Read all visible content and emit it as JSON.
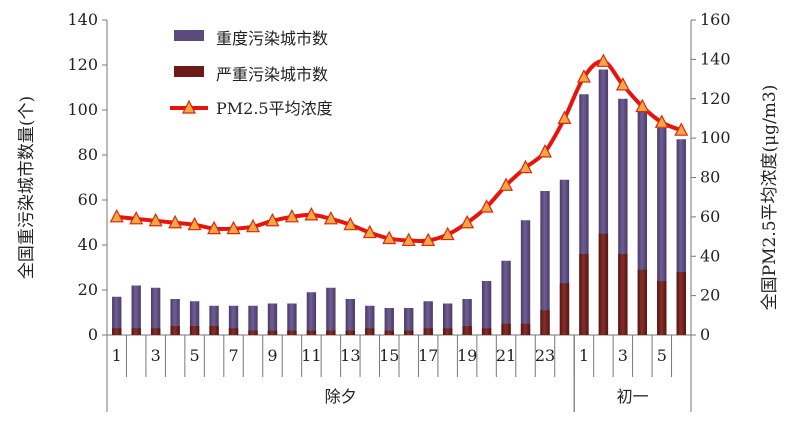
{
  "chart_data": {
    "type": "bar",
    "ylabel_left": "全国重污染城市数量(个)",
    "ylabel_right": "全国PM2.5平均浓度(μg/m3)",
    "ylim_left": [
      0,
      140
    ],
    "yticks_left": [
      0,
      20,
      40,
      60,
      80,
      100,
      120,
      140
    ],
    "ylim_right": [
      0,
      160
    ],
    "yticks_right": [
      0,
      20,
      40,
      60,
      80,
      100,
      120,
      140,
      160
    ],
    "x_hours": [
      1,
      2,
      3,
      4,
      5,
      6,
      7,
      8,
      9,
      10,
      11,
      12,
      13,
      14,
      15,
      16,
      17,
      18,
      19,
      20,
      21,
      22,
      23,
      24,
      1,
      2,
      3,
      4,
      5,
      6
    ],
    "x_tick_labels": [
      "1",
      "3",
      "5",
      "7",
      "9",
      "11",
      "13",
      "15",
      "17",
      "19",
      "21",
      "23",
      "1",
      "3",
      "5"
    ],
    "x_groups": [
      {
        "label": "除夕",
        "count": 24
      },
      {
        "label": "初一",
        "count": 6
      }
    ],
    "legend_position": "top-left",
    "series": [
      {
        "name": "重度污染城市数",
        "type": "bar",
        "axis": "left",
        "color": "#5b4a7d",
        "values": [
          17,
          22,
          21,
          16,
          15,
          13,
          13,
          13,
          14,
          14,
          19,
          21,
          16,
          13,
          12,
          12,
          15,
          14,
          16,
          24,
          33,
          51,
          64,
          69,
          107,
          118,
          105,
          100,
          92,
          87
        ]
      },
      {
        "name": "严重污染城市数",
        "type": "bar",
        "axis": "left",
        "color": "#6b1a18",
        "values": [
          3,
          3,
          3,
          4,
          4,
          4,
          3,
          2,
          2,
          2,
          2,
          2,
          2,
          3,
          2,
          2,
          3,
          3,
          4,
          3,
          5,
          5,
          11,
          23,
          36,
          45,
          36,
          29,
          24,
          28
        ]
      },
      {
        "name": "PM2.5平均浓度",
        "type": "line",
        "axis": "right",
        "color": "#e8140c",
        "marker_color": "#f5a742",
        "values": [
          60,
          59,
          58,
          57,
          56,
          54,
          54,
          55,
          58,
          60,
          61,
          59,
          56,
          52,
          49,
          48,
          48,
          51,
          57,
          65,
          76,
          85,
          93,
          110,
          131,
          139,
          127,
          116,
          108,
          104
        ]
      }
    ]
  }
}
